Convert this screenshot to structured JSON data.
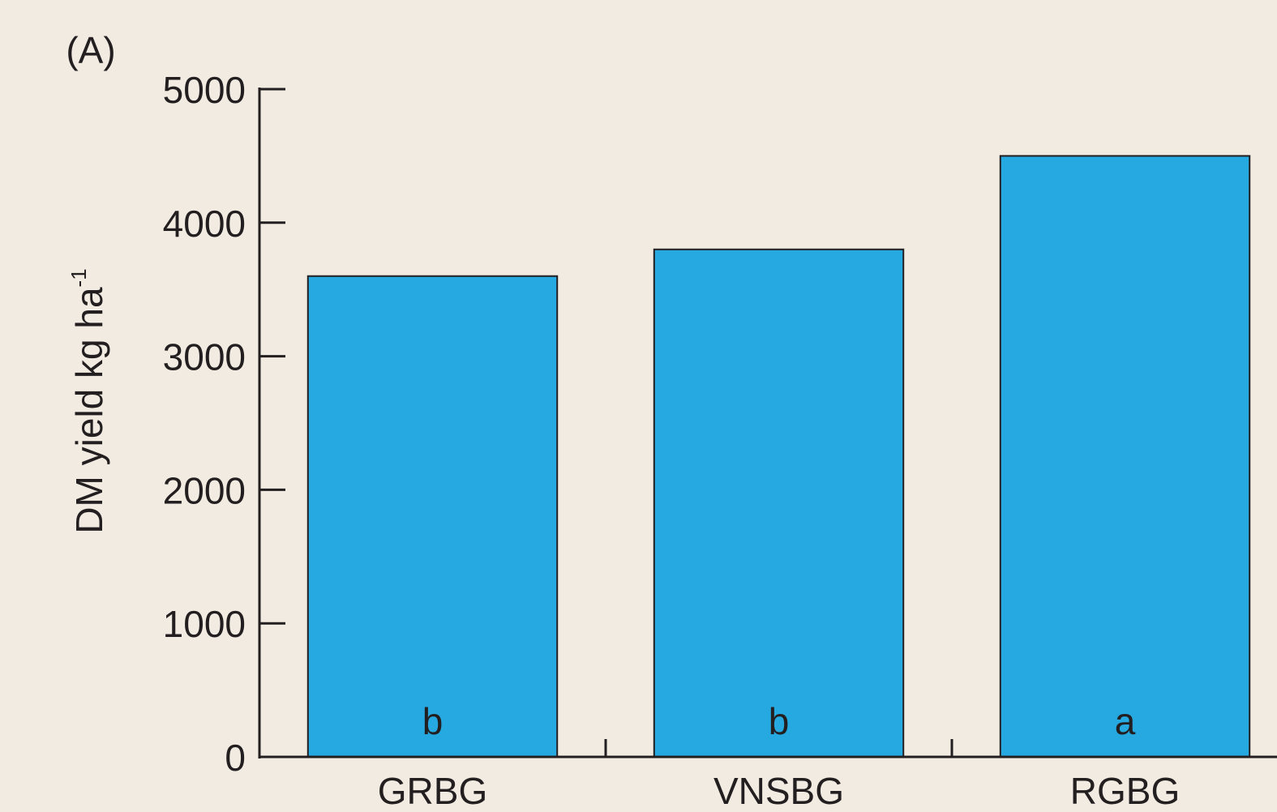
{
  "chart_data": {
    "type": "bar",
    "panel_label": "(A)",
    "y_label": "DM yield kg ha",
    "y_label_superscript": "-1",
    "categories": [
      "GRBG",
      "VNSBG",
      "RGBG"
    ],
    "values": [
      3600,
      3800,
      4500
    ],
    "letters": [
      "b",
      "b",
      "a"
    ],
    "color": "#26a8e0",
    "ylim": [
      0,
      5000
    ],
    "yticks": [
      0,
      1000,
      2000,
      3000,
      4000,
      5000
    ],
    "grid": false
  }
}
